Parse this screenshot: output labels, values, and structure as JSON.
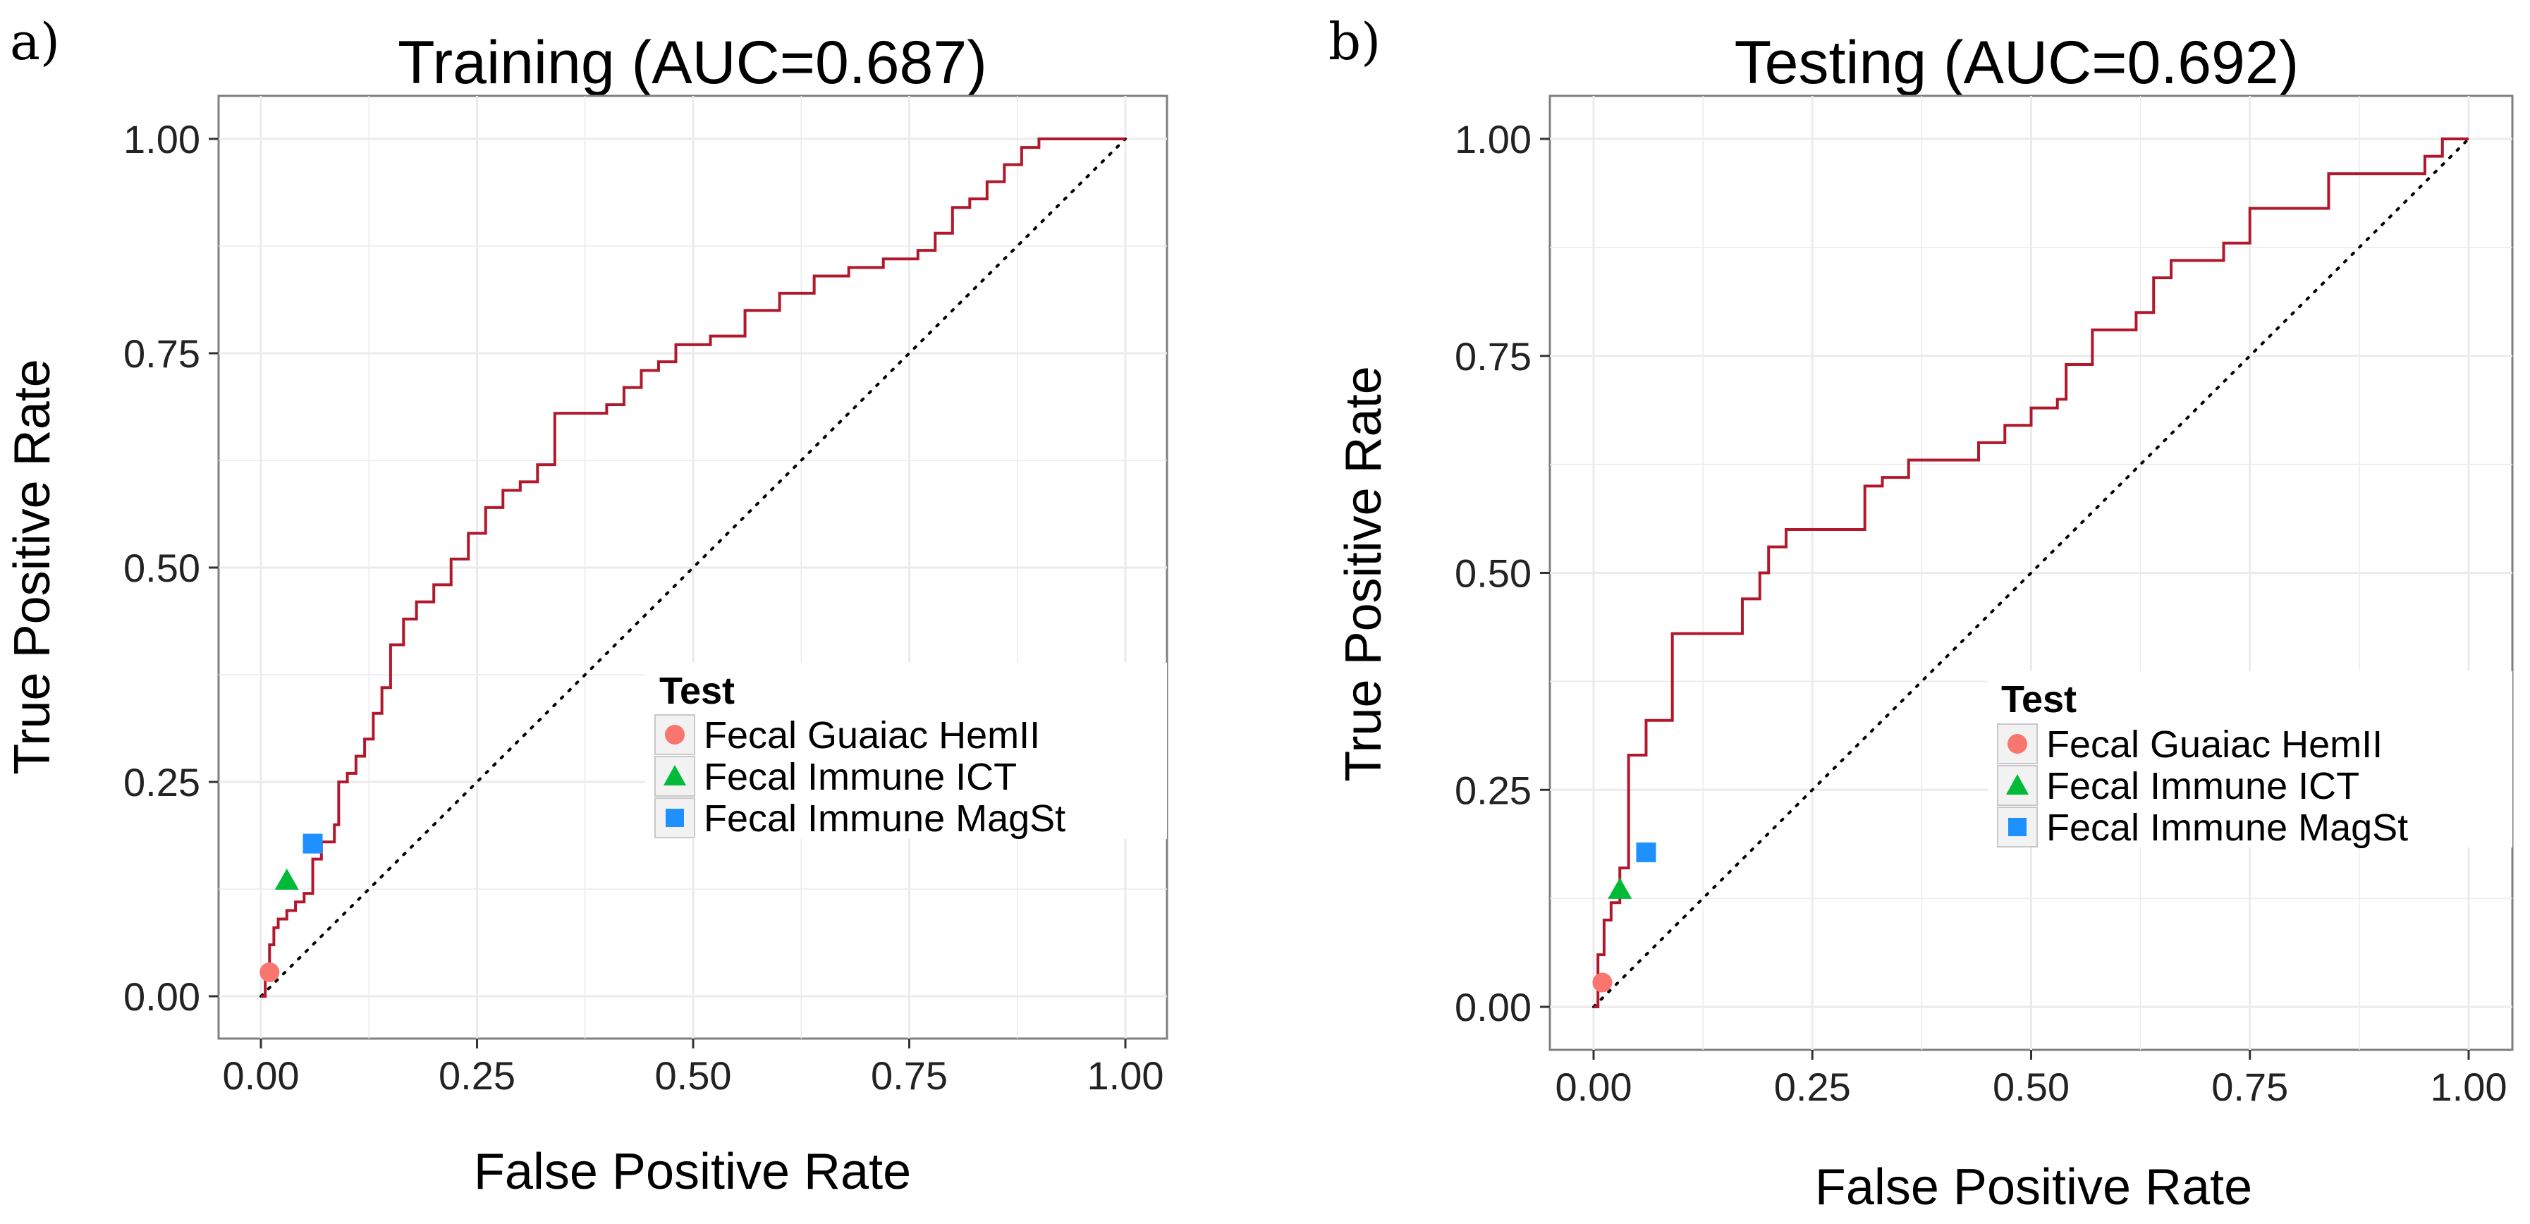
{
  "figure": {
    "panels": [
      {
        "letter": "a)",
        "id": "training"
      },
      {
        "letter": "b)",
        "id": "testing"
      }
    ]
  },
  "colors": {
    "roc_line": "#b2182b",
    "diagonal": "#000000",
    "hemII": "#f8766d",
    "ict": "#00ba38",
    "magst": "#1e90ff",
    "grid": "#ebebeb",
    "panel_border": "#7f7f7f"
  },
  "chart_data": [
    {
      "type": "line",
      "title": "Training (AUC=0.687)",
      "xlabel": "False Positive Rate",
      "ylabel": "True Positive Rate",
      "xlim": [
        -0.05,
        1.05
      ],
      "ylim": [
        -0.05,
        1.05
      ],
      "xticks": [
        "0.00",
        "0.25",
        "0.50",
        "0.75",
        "1.00"
      ],
      "yticks": [
        "0.00",
        "0.25",
        "0.50",
        "0.75",
        "1.00"
      ],
      "grid": true,
      "legend_position": "center-right",
      "legend_title": "Test",
      "roc_points": [
        [
          0,
          0
        ],
        [
          0.005,
          0.03
        ],
        [
          0.01,
          0.06
        ],
        [
          0.015,
          0.08
        ],
        [
          0.02,
          0.09
        ],
        [
          0.03,
          0.1
        ],
        [
          0.04,
          0.11
        ],
        [
          0.05,
          0.12
        ],
        [
          0.06,
          0.16
        ],
        [
          0.07,
          0.18
        ],
        [
          0.085,
          0.2
        ],
        [
          0.09,
          0.25
        ],
        [
          0.1,
          0.26
        ],
        [
          0.11,
          0.28
        ],
        [
          0.12,
          0.3
        ],
        [
          0.13,
          0.33
        ],
        [
          0.14,
          0.36
        ],
        [
          0.15,
          0.41
        ],
        [
          0.165,
          0.44
        ],
        [
          0.18,
          0.46
        ],
        [
          0.2,
          0.48
        ],
        [
          0.22,
          0.51
        ],
        [
          0.24,
          0.54
        ],
        [
          0.26,
          0.57
        ],
        [
          0.28,
          0.59
        ],
        [
          0.3,
          0.6
        ],
        [
          0.32,
          0.62
        ],
        [
          0.34,
          0.68
        ],
        [
          0.4,
          0.69
        ],
        [
          0.42,
          0.71
        ],
        [
          0.44,
          0.73
        ],
        [
          0.46,
          0.74
        ],
        [
          0.48,
          0.76
        ],
        [
          0.52,
          0.77
        ],
        [
          0.56,
          0.8
        ],
        [
          0.6,
          0.82
        ],
        [
          0.64,
          0.84
        ],
        [
          0.68,
          0.85
        ],
        [
          0.72,
          0.86
        ],
        [
          0.76,
          0.87
        ],
        [
          0.78,
          0.89
        ],
        [
          0.8,
          0.92
        ],
        [
          0.82,
          0.93
        ],
        [
          0.84,
          0.95
        ],
        [
          0.86,
          0.97
        ],
        [
          0.88,
          0.99
        ],
        [
          0.9,
          1.0
        ],
        [
          1.0,
          1.0
        ]
      ],
      "diagonal": [
        [
          0,
          0
        ],
        [
          1,
          1
        ]
      ],
      "series": [
        {
          "name": "Fecal Guaiac HemII",
          "marker": "circle",
          "x": 0.01,
          "y": 0.028
        },
        {
          "name": "Fecal Immune ICT",
          "marker": "triangle",
          "x": 0.03,
          "y": 0.135
        },
        {
          "name": "Fecal Immune MagSt",
          "marker": "square",
          "x": 0.06,
          "y": 0.178
        }
      ]
    },
    {
      "type": "line",
      "title": "Testing (AUC=0.692)",
      "xlabel": "False Positive Rate",
      "ylabel": "True Positive Rate",
      "xlim": [
        -0.05,
        1.05
      ],
      "ylim": [
        -0.05,
        1.05
      ],
      "xticks": [
        "0.00",
        "0.25",
        "0.50",
        "0.75",
        "1.00"
      ],
      "yticks": [
        "0.00",
        "0.25",
        "0.50",
        "0.75",
        "1.00"
      ],
      "grid": true,
      "legend_position": "center-right",
      "legend_title": "Test",
      "roc_points": [
        [
          0,
          0
        ],
        [
          0.005,
          0.06
        ],
        [
          0.012,
          0.1
        ],
        [
          0.02,
          0.12
        ],
        [
          0.03,
          0.16
        ],
        [
          0.04,
          0.2
        ],
        [
          0.04,
          0.29
        ],
        [
          0.06,
          0.33
        ],
        [
          0.08,
          0.33
        ],
        [
          0.09,
          0.43
        ],
        [
          0.16,
          0.43
        ],
        [
          0.17,
          0.47
        ],
        [
          0.19,
          0.5
        ],
        [
          0.2,
          0.53
        ],
        [
          0.22,
          0.55
        ],
        [
          0.3,
          0.55
        ],
        [
          0.31,
          0.6
        ],
        [
          0.33,
          0.61
        ],
        [
          0.36,
          0.63
        ],
        [
          0.42,
          0.63
        ],
        [
          0.44,
          0.65
        ],
        [
          0.47,
          0.67
        ],
        [
          0.5,
          0.69
        ],
        [
          0.53,
          0.7
        ],
        [
          0.54,
          0.74
        ],
        [
          0.57,
          0.78
        ],
        [
          0.62,
          0.8
        ],
        [
          0.64,
          0.84
        ],
        [
          0.66,
          0.86
        ],
        [
          0.72,
          0.88
        ],
        [
          0.75,
          0.92
        ],
        [
          0.84,
          0.92
        ],
        [
          0.84,
          0.96
        ],
        [
          0.92,
          0.96
        ],
        [
          0.95,
          0.98
        ],
        [
          0.97,
          1.0
        ],
        [
          1.0,
          1.0
        ]
      ],
      "diagonal": [
        [
          0,
          0
        ],
        [
          1,
          1
        ]
      ],
      "series": [
        {
          "name": "Fecal Guaiac HemII",
          "marker": "circle",
          "x": 0.01,
          "y": 0.028
        },
        {
          "name": "Fecal Immune ICT",
          "marker": "triangle",
          "x": 0.03,
          "y": 0.135
        },
        {
          "name": "Fecal Immune MagSt",
          "marker": "square",
          "x": 0.06,
          "y": 0.178
        }
      ]
    }
  ]
}
